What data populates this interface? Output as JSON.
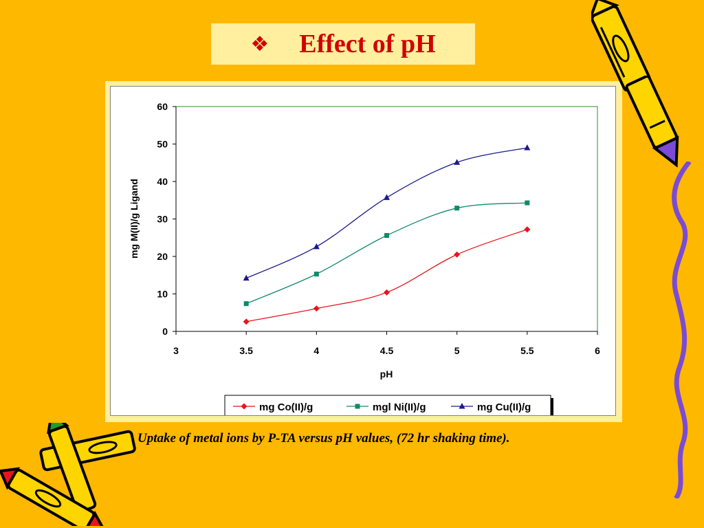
{
  "slide": {
    "bullet_glyph": "❖",
    "title": "Effect of pH",
    "caption": "Uptake of metal ions by P-TA versus pH values, (72 hr shaking time).",
    "colors": {
      "background": "#FFB800",
      "title": "#D10000",
      "title_box": "#FFEF9E"
    }
  },
  "chart_data": {
    "type": "line",
    "xlabel": "pH",
    "ylabel": "mg M(II)/g Ligand",
    "xlim": [
      3,
      6
    ],
    "ylim": [
      0,
      60
    ],
    "x_ticks": [
      "3",
      "3.5",
      "4",
      "4.5",
      "5",
      "5.5",
      "6"
    ],
    "y_ticks": [
      "0",
      "10",
      "20",
      "30",
      "40",
      "50",
      "60"
    ],
    "x": [
      3.5,
      4,
      4.5,
      5,
      5.5
    ],
    "series": [
      {
        "name": "mg Co(II)/g",
        "marker": "diamond",
        "color": "#E8141C",
        "values": [
          2.6,
          6.1,
          10.4,
          20.5,
          27.2
        ]
      },
      {
        "name": "mgl Ni(II)/g",
        "marker": "square",
        "color": "#108A6A",
        "values": [
          7.4,
          15.3,
          25.6,
          32.9,
          34.3
        ]
      },
      {
        "name": "mg Cu(II)/g",
        "marker": "triangle",
        "color": "#1A1A8C",
        "values": [
          14.2,
          22.6,
          35.7,
          45.1,
          49.0
        ]
      }
    ],
    "grid": false,
    "legend_position": "bottom"
  }
}
